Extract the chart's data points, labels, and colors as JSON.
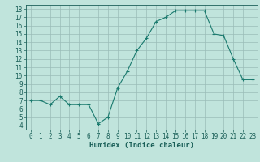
{
  "x": [
    0,
    1,
    2,
    3,
    4,
    5,
    6,
    7,
    8,
    9,
    10,
    11,
    12,
    13,
    14,
    15,
    16,
    17,
    18,
    19,
    20,
    21,
    22,
    23
  ],
  "y": [
    7.0,
    7.0,
    6.5,
    7.5,
    6.5,
    6.5,
    6.5,
    4.2,
    5.0,
    8.5,
    10.5,
    13.0,
    14.5,
    16.5,
    17.0,
    17.8,
    17.8,
    17.8,
    17.8,
    15.0,
    14.8,
    12.0,
    9.5,
    9.5
  ],
  "line_color": "#1a7a6e",
  "marker": "+",
  "marker_size": 3,
  "marker_lw": 0.8,
  "line_width": 0.8,
  "bg_color": "#c0e4dc",
  "grid_color": "#9abcb8",
  "xlabel": "Humidex (Indice chaleur)",
  "xlim": [
    -0.5,
    23.5
  ],
  "ylim": [
    3.5,
    18.5
  ],
  "yticks": [
    4,
    5,
    6,
    7,
    8,
    9,
    10,
    11,
    12,
    13,
    14,
    15,
    16,
    17,
    18
  ],
  "xticks": [
    0,
    1,
    2,
    3,
    4,
    5,
    6,
    7,
    8,
    9,
    10,
    11,
    12,
    13,
    14,
    15,
    16,
    17,
    18,
    19,
    20,
    21,
    22,
    23
  ],
  "tick_color": "#1a5f58",
  "label_fontsize": 6.5,
  "tick_fontsize": 5.5
}
